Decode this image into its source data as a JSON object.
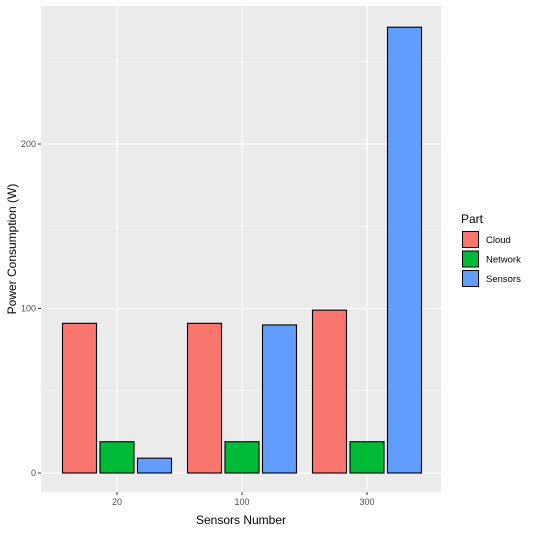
{
  "chart_data": {
    "type": "bar",
    "title": "",
    "xlabel": "Sensors Number",
    "ylabel": "Power Consumption (W)",
    "categories": [
      "20",
      "100",
      "300"
    ],
    "ylim": [
      0,
      283
    ],
    "yticks": [
      0,
      100,
      200
    ],
    "series": [
      {
        "name": "Cloud",
        "color": "#F8766D",
        "values": [
          91,
          91,
          99
        ]
      },
      {
        "name": "Network",
        "color": "#00BA38",
        "values": [
          19,
          19,
          19
        ]
      },
      {
        "name": "Sensors",
        "color": "#619CFF",
        "values": [
          9,
          90,
          271
        ]
      }
    ],
    "legend": {
      "title": "Part",
      "position": "right"
    },
    "grid": true
  }
}
